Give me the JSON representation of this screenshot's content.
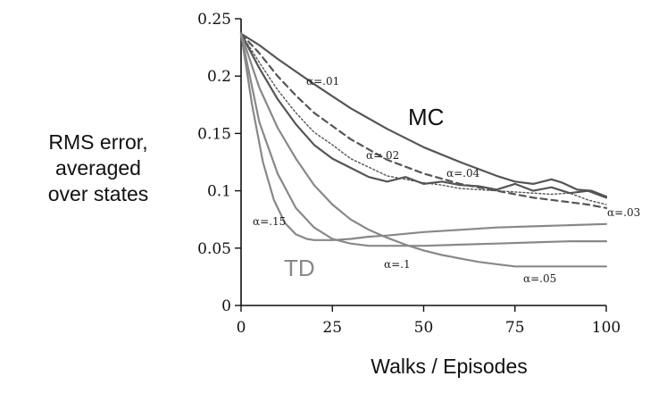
{
  "chart_data": {
    "type": "line",
    "title": "",
    "xlabel": "Walks / Episodes",
    "ylabel_lines": [
      "RMS error,",
      "averaged",
      "over states"
    ],
    "xlim": [
      0,
      100
    ],
    "ylim": [
      0,
      0.25
    ],
    "x_ticks": [
      0,
      25,
      50,
      75,
      100
    ],
    "x_tick_labels": [
      "0",
      "25",
      "50",
      "75",
      "100"
    ],
    "y_ticks": [
      0,
      0.05,
      0.1,
      0.15,
      0.2,
      0.25
    ],
    "y_tick_labels": [
      "0",
      "0.05",
      "0.1",
      "0.15",
      "0.2",
      "0.25"
    ],
    "grid": false,
    "legend": "none",
    "group_labels": {
      "mc": "MC",
      "td": "TD"
    },
    "series": [
      {
        "method": "MC",
        "alpha": ".01",
        "label": "α=.01",
        "style": "solid",
        "color": "#555555",
        "x": [
          0,
          5,
          10,
          15,
          20,
          30,
          40,
          50,
          60,
          70,
          75,
          80,
          85,
          88,
          92,
          96,
          100
        ],
        "y": [
          0.237,
          0.227,
          0.215,
          0.204,
          0.193,
          0.172,
          0.154,
          0.138,
          0.125,
          0.113,
          0.108,
          0.106,
          0.11,
          0.107,
          0.101,
          0.1,
          0.095
        ]
      },
      {
        "method": "MC",
        "alpha": ".02",
        "label": "α=.02",
        "style": "dashed",
        "color": "#555555",
        "x": [
          0,
          5,
          10,
          15,
          20,
          30,
          40,
          50,
          60,
          70,
          80,
          90,
          95,
          100
        ],
        "y": [
          0.237,
          0.22,
          0.2,
          0.183,
          0.168,
          0.145,
          0.127,
          0.115,
          0.106,
          0.1,
          0.094,
          0.09,
          0.088,
          0.085
        ]
      },
      {
        "method": "MC",
        "alpha": ".03",
        "label": "α=.03",
        "style": "dotted",
        "color": "#555555",
        "x": [
          0,
          5,
          10,
          15,
          20,
          25,
          30,
          40,
          45,
          50,
          55,
          60,
          70,
          80,
          85,
          90,
          95,
          100
        ],
        "y": [
          0.237,
          0.212,
          0.188,
          0.168,
          0.151,
          0.14,
          0.128,
          0.113,
          0.11,
          0.107,
          0.105,
          0.102,
          0.1,
          0.098,
          0.097,
          0.098,
          0.092,
          0.088
        ]
      },
      {
        "method": "MC",
        "alpha": ".04",
        "label": "α=.04",
        "style": "solid",
        "color": "#555555",
        "x": [
          0,
          5,
          10,
          15,
          20,
          25,
          30,
          35,
          40,
          45,
          50,
          55,
          60,
          65,
          70,
          75,
          80,
          85,
          90,
          95,
          100
        ],
        "y": [
          0.237,
          0.207,
          0.18,
          0.158,
          0.14,
          0.128,
          0.12,
          0.112,
          0.108,
          0.112,
          0.106,
          0.108,
          0.105,
          0.104,
          0.101,
          0.106,
          0.1,
          0.103,
          0.098,
          0.1,
          0.094
        ]
      },
      {
        "method": "TD",
        "alpha": ".05",
        "label": "α=.05",
        "style": "solid",
        "color": "#888888",
        "x": [
          0,
          5,
          10,
          15,
          20,
          25,
          30,
          35,
          40,
          45,
          50,
          55,
          60,
          65,
          70,
          75,
          80,
          90,
          100
        ],
        "y": [
          0.237,
          0.19,
          0.155,
          0.128,
          0.105,
          0.088,
          0.075,
          0.066,
          0.059,
          0.053,
          0.048,
          0.044,
          0.041,
          0.038,
          0.036,
          0.034,
          0.034,
          0.034,
          0.034
        ]
      },
      {
        "method": "TD",
        "alpha": ".1",
        "label": "α=.1",
        "style": "solid",
        "color": "#888888",
        "x": [
          0,
          5,
          10,
          15,
          20,
          25,
          30,
          35,
          40,
          50,
          60,
          70,
          80,
          90,
          100
        ],
        "y": [
          0.237,
          0.16,
          0.115,
          0.085,
          0.068,
          0.058,
          0.054,
          0.052,
          0.052,
          0.052,
          0.053,
          0.054,
          0.055,
          0.056,
          0.056
        ]
      },
      {
        "method": "TD",
        "alpha": ".15",
        "label": "α=.15",
        "style": "solid",
        "color": "#888888",
        "x": [
          0,
          3,
          6,
          9,
          12,
          15,
          18,
          20,
          25,
          30,
          35,
          40,
          50,
          60,
          70,
          80,
          90,
          100
        ],
        "y": [
          0.237,
          0.175,
          0.125,
          0.092,
          0.072,
          0.062,
          0.058,
          0.057,
          0.057,
          0.058,
          0.06,
          0.061,
          0.064,
          0.066,
          0.068,
          0.069,
          0.07,
          0.071
        ]
      }
    ]
  }
}
